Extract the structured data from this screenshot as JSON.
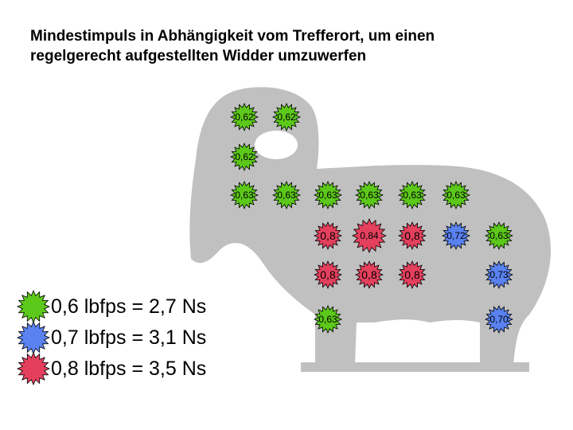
{
  "title": [
    "Mindestimpuls in Abhängigkeit vom Trefferort, um einen",
    "regelgerecht aufgestellten Widder umzuwerfen"
  ],
  "colors": {
    "green": "#5cc81a",
    "blue": "#5a82f0",
    "red": "#e4405e",
    "silhouette": "#c0c0c0"
  },
  "legend": [
    {
      "color": "green",
      "label": "0,6 lbfps = 2,7 Ns"
    },
    {
      "color": "blue",
      "label": "0,7 lbfps = 3,1 Ns"
    },
    {
      "color": "red",
      "label": "0,8 lbfps = 3,5 Ns"
    }
  ],
  "markers": [
    {
      "row": 1,
      "col": 1,
      "value": "0,62",
      "color": "green"
    },
    {
      "row": 1,
      "col": 2,
      "value": "0,62",
      "color": "green"
    },
    {
      "row": 2,
      "col": 1,
      "value": "0,62",
      "color": "green"
    },
    {
      "row": 3,
      "col": 1,
      "value": "0,63",
      "color": "green"
    },
    {
      "row": 3,
      "col": 2,
      "value": "0,63",
      "color": "green"
    },
    {
      "row": 3,
      "col": 3,
      "value": "0,63",
      "color": "green"
    },
    {
      "row": 3,
      "col": 4,
      "value": "0,63",
      "color": "green"
    },
    {
      "row": 3,
      "col": 5,
      "value": "0,63",
      "color": "green"
    },
    {
      "row": 3,
      "col": 6,
      "value": "0,63",
      "color": "green"
    },
    {
      "row": 4,
      "col": 3,
      "value": "0,8",
      "color": "red"
    },
    {
      "row": 4,
      "col": 4,
      "value": "0,84",
      "color": "red"
    },
    {
      "row": 4,
      "col": 5,
      "value": "0,8",
      "color": "red"
    },
    {
      "row": 4,
      "col": 6,
      "value": "0,72",
      "color": "blue"
    },
    {
      "row": 4,
      "col": 7,
      "value": "0,63",
      "color": "green"
    },
    {
      "row": 5,
      "col": 3,
      "value": "0,8",
      "color": "red"
    },
    {
      "row": 5,
      "col": 4,
      "value": "0,8",
      "color": "red"
    },
    {
      "row": 5,
      "col": 5,
      "value": "0,8",
      "color": "red"
    },
    {
      "row": 5,
      "col": 7,
      "value": "0,73",
      "color": "blue"
    },
    {
      "row": 6,
      "col": 3,
      "value": "0,63",
      "color": "green"
    },
    {
      "row": 6,
      "col": 7,
      "value": "0,70",
      "color": "blue"
    }
  ]
}
